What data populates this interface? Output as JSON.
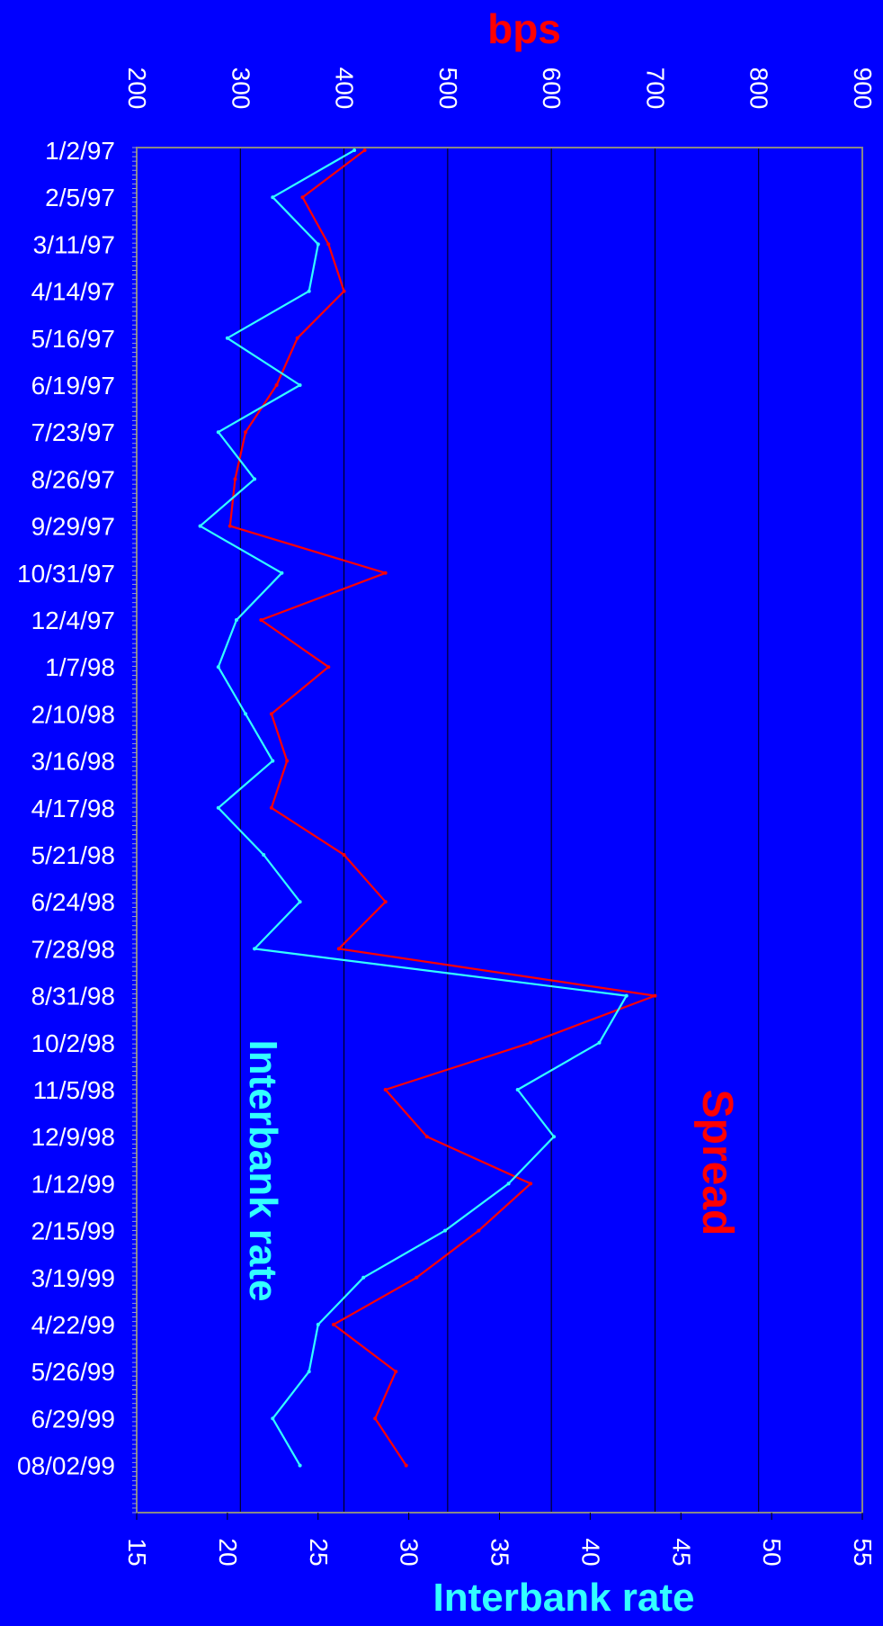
{
  "colors": {
    "background": "#0000FF",
    "spread": "#FF0000",
    "interbank": "#33FFFF",
    "tick_text": "#FFFFFF",
    "gridline": "#000000"
  },
  "chart_data": {
    "type": "line",
    "orientation": "rotated-90-dates-top-to-bottom",
    "grid": true,
    "top_axis": {
      "title": "bps",
      "range": [
        200,
        900
      ],
      "ticks": [
        200,
        300,
        400,
        500,
        600,
        700,
        800,
        900
      ]
    },
    "bottom_axis": {
      "title": "Interbank rate",
      "range": [
        15,
        55
      ],
      "ticks": [
        15,
        20,
        25,
        30,
        35,
        40,
        45,
        50,
        55
      ]
    },
    "date_labels": [
      "1/2/97",
      "2/5/97",
      "3/11/97",
      "4/14/97",
      "5/16/97",
      "6/19/97",
      "7/23/97",
      "8/26/97",
      "9/29/97",
      "10/31/97",
      "12/4/97",
      "1/7/98",
      "2/10/98",
      "3/16/98",
      "4/17/98",
      "5/21/98",
      "6/24/98",
      "7/28/98",
      "8/31/98",
      "10/2/98",
      "11/5/98",
      "12/9/98",
      "1/12/99",
      "2/15/99",
      "3/19/99",
      "4/22/99",
      "5/26/99",
      "6/29/99",
      "08/02/99"
    ],
    "series": [
      {
        "name": "Spread",
        "axis": "bps",
        "x": [
          "1/2/97",
          "2/5/97",
          "3/11/97",
          "4/14/97",
          "5/16/97",
          "6/19/97",
          "7/23/97",
          "8/26/97",
          "9/29/97",
          "10/31/97",
          "12/4/97",
          "1/7/98",
          "2/10/98",
          "3/16/98",
          "4/17/98",
          "5/21/98",
          "6/24/98",
          "7/28/98",
          "8/31/98",
          "10/2/98",
          "11/5/98",
          "12/9/98",
          "1/12/99",
          "2/15/99",
          "3/19/99",
          "4/22/99",
          "5/26/99",
          "6/29/99",
          "08/02/99"
        ],
        "values": [
          420,
          360,
          385,
          400,
          355,
          335,
          305,
          295,
          290,
          440,
          320,
          385,
          330,
          345,
          330,
          400,
          440,
          395,
          700,
          580,
          440,
          480,
          580,
          530,
          470,
          390,
          450,
          430,
          460
        ]
      },
      {
        "name": "Interbank rate",
        "axis": "Interbank rate",
        "x": [
          "1/2/97",
          "2/5/97",
          "3/11/97",
          "4/14/97",
          "5/16/97",
          "6/19/97",
          "7/23/97",
          "8/26/97",
          "9/29/97",
          "10/31/97",
          "12/4/97",
          "1/7/98",
          "2/10/98",
          "3/16/98",
          "4/17/98",
          "5/21/98",
          "6/24/98",
          "7/28/98",
          "8/31/98",
          "10/2/98",
          "11/5/98",
          "12/9/98",
          "1/12/99",
          "2/15/99",
          "3/19/99",
          "4/22/99",
          "5/26/99",
          "6/29/99",
          "08/02/99"
        ],
        "values": [
          27.0,
          22.5,
          25.0,
          24.5,
          20.0,
          24.0,
          19.5,
          21.5,
          18.5,
          23.0,
          20.5,
          19.5,
          21.0,
          22.5,
          19.5,
          22.0,
          24.0,
          21.5,
          42.0,
          40.5,
          36.0,
          38.0,
          35.5,
          32.0,
          27.5,
          25.0,
          24.5,
          22.5,
          24.0
        ]
      }
    ],
    "annotations": [
      "Spread",
      "Interbank rate"
    ]
  }
}
